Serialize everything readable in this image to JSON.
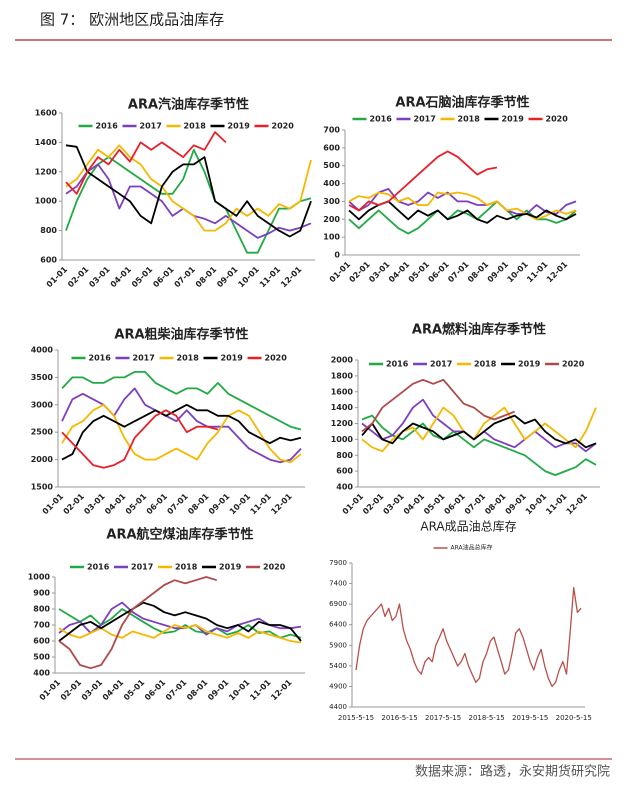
{
  "header": {
    "title": "图 7：  欧洲地区成品油库存"
  },
  "footer": {
    "source": "数据来源：路透，永安期货研究院"
  },
  "chart_data": [
    {
      "type": "line",
      "title": "ARA汽油库存季节性",
      "categories": [
        "01-01",
        null,
        "02-01",
        null,
        "03-01",
        null,
        "04-01",
        null,
        "05-01",
        null,
        "06-01",
        null,
        "07-01",
        null,
        "08-01",
        null,
        "09-01",
        null,
        "10-01",
        null,
        "11-01",
        null,
        "12-01",
        null
      ],
      "ylim": [
        600,
        1600
      ],
      "yticks": [
        600,
        800,
        1000,
        1200,
        1400,
        1600
      ],
      "series": [
        {
          "name": "2016",
          "color": "#22aa44",
          "values": [
            800,
            1000,
            1150,
            1250,
            1300,
            1250,
            1200,
            1150,
            1100,
            1050,
            1050,
            1150,
            1350,
            1200,
            1000,
            950,
            800,
            650,
            650,
            800,
            950,
            950,
            1000,
            1020
          ]
        },
        {
          "name": "2017",
          "color": "#7b3fbf",
          "values": [
            1050,
            1100,
            1200,
            1250,
            1150,
            950,
            1100,
            1100,
            1050,
            1000,
            900,
            950,
            900,
            880,
            850,
            900,
            850,
            800,
            750,
            780,
            820,
            800,
            820,
            850
          ]
        },
        {
          "name": "2018",
          "color": "#f5b800",
          "values": [
            1100,
            1150,
            1250,
            1350,
            1300,
            1380,
            1300,
            1250,
            1150,
            1100,
            1000,
            950,
            900,
            800,
            800,
            850,
            950,
            900,
            950,
            900,
            980,
            950,
            1000,
            1280
          ]
        },
        {
          "name": "2019",
          "color": "#000000",
          "values": [
            1380,
            1370,
            1200,
            1150,
            1100,
            1050,
            1000,
            900,
            850,
            1100,
            1200,
            1250,
            1250,
            1300,
            1000,
            950,
            900,
            1000,
            900,
            850,
            800,
            760,
            800,
            1000
          ]
        },
        {
          "name": "2020",
          "color": "#e8202a",
          "values": [
            1130,
            1050,
            1200,
            1300,
            1250,
            1350,
            1270,
            1400,
            1350,
            1400,
            1350,
            1300,
            1380,
            1350,
            1470,
            1400,
            null,
            null,
            null,
            null,
            null,
            null,
            null,
            null
          ]
        }
      ]
    },
    {
      "type": "line",
      "title": "ARA石脑油库存季节性",
      "categories": [
        "01-01",
        null,
        "02-01",
        null,
        "03-01",
        null,
        "04-01",
        null,
        "05-01",
        null,
        "06-01",
        null,
        "07-01",
        null,
        "08-01",
        null,
        "09-01",
        null,
        "10-01",
        null,
        "11-01",
        null,
        "12-01",
        null
      ],
      "ylim": [
        0,
        700
      ],
      "yticks": [
        0,
        100,
        200,
        300,
        400,
        500,
        600,
        700
      ],
      "series": [
        {
          "name": "2016",
          "color": "#22aa44",
          "values": [
            200,
            150,
            200,
            250,
            200,
            150,
            120,
            150,
            200,
            250,
            200,
            250,
            230,
            200,
            250,
            300,
            250,
            200,
            250,
            200,
            200,
            180,
            200,
            250
          ]
        },
        {
          "name": "2017",
          "color": "#7b3fbf",
          "values": [
            300,
            250,
            280,
            350,
            370,
            300,
            280,
            300,
            350,
            320,
            350,
            300,
            300,
            280,
            280,
            300,
            250,
            230,
            230,
            280,
            240,
            230,
            280,
            300
          ]
        },
        {
          "name": "2018",
          "color": "#f5b800",
          "values": [
            300,
            330,
            320,
            350,
            340,
            300,
            320,
            280,
            280,
            350,
            340,
            350,
            340,
            320,
            280,
            300,
            250,
            260,
            230,
            200,
            220,
            250,
            230,
            250
          ]
        },
        {
          "name": "2019",
          "color": "#000000",
          "values": [
            250,
            200,
            250,
            280,
            300,
            250,
            200,
            250,
            220,
            250,
            200,
            220,
            250,
            200,
            180,
            220,
            200,
            220,
            230,
            210,
            250,
            220,
            200,
            230
          ]
        },
        {
          "name": "2020",
          "color": "#e8202a",
          "values": [
            280,
            250,
            300,
            280,
            300,
            350,
            400,
            450,
            500,
            550,
            580,
            550,
            500,
            450,
            480,
            490,
            null,
            null,
            null,
            null,
            null,
            null,
            null,
            null
          ]
        }
      ]
    },
    {
      "type": "line",
      "title": "ARA粗柴油库存季节性",
      "categories": [
        "01-01",
        null,
        "02-01",
        null,
        "03-01",
        null,
        "04-01",
        null,
        "05-01",
        null,
        "06-01",
        null,
        "07-01",
        null,
        "08-01",
        null,
        "09-01",
        null,
        "10-01",
        null,
        "11-01",
        null,
        "12-01",
        null
      ],
      "ylim": [
        1500,
        4000
      ],
      "yticks": [
        1500,
        2000,
        2500,
        3000,
        3500,
        4000
      ],
      "series": [
        {
          "name": "2016",
          "color": "#22aa44",
          "values": [
            3300,
            3500,
            3500,
            3400,
            3400,
            3500,
            3500,
            3600,
            3600,
            3400,
            3300,
            3200,
            3300,
            3300,
            3200,
            3400,
            3200,
            3100,
            3000,
            2900,
            2800,
            2700,
            2600,
            2550
          ]
        },
        {
          "name": "2017",
          "color": "#7b3fbf",
          "values": [
            2700,
            3100,
            3200,
            3100,
            3000,
            2800,
            3100,
            3300,
            3000,
            2900,
            2800,
            2700,
            2900,
            2700,
            2600,
            2600,
            2600,
            2400,
            2200,
            2100,
            2000,
            1950,
            2000,
            2200
          ]
        },
        {
          "name": "2018",
          "color": "#f5b800",
          "values": [
            2300,
            2600,
            2700,
            2900,
            3000,
            2800,
            2400,
            2100,
            2000,
            2000,
            2100,
            2200,
            2100,
            2000,
            2300,
            2500,
            2800,
            2900,
            2800,
            2500,
            2200,
            2000,
            1950,
            2100
          ]
        },
        {
          "name": "2019",
          "color": "#000000",
          "values": [
            2000,
            2100,
            2500,
            2700,
            2800,
            2700,
            2600,
            2700,
            2800,
            2900,
            2800,
            2900,
            3000,
            2900,
            2900,
            2800,
            2800,
            2700,
            2500,
            2400,
            2300,
            2400,
            2350,
            2400
          ]
        },
        {
          "name": "2020",
          "color": "#e8202a",
          "values": [
            2500,
            2300,
            2100,
            1900,
            1850,
            1900,
            2000,
            2400,
            2600,
            2800,
            2900,
            2800,
            2500,
            2600,
            2600,
            2550,
            null,
            null,
            null,
            null,
            null,
            null,
            null,
            null
          ]
        }
      ]
    },
    {
      "type": "line",
      "title": "ARA燃料油库存季节性",
      "categories": [
        "01-01",
        null,
        "02-01",
        null,
        "03-01",
        null,
        "04-01",
        null,
        "05-01",
        null,
        "06-01",
        null,
        "07-01",
        null,
        "08-01",
        null,
        "09-01",
        null,
        "10-01",
        null,
        "11-01",
        null,
        "12-01",
        null
      ],
      "ylim": [
        400,
        2000
      ],
      "yticks": [
        400,
        600,
        800,
        1000,
        1200,
        1400,
        1600,
        1800,
        2000
      ],
      "series": [
        {
          "name": "2016",
          "color": "#22aa44",
          "values": [
            1250,
            1300,
            1150,
            1050,
            1000,
            1100,
            1200,
            1050,
            1000,
            1100,
            1000,
            900,
            1000,
            950,
            900,
            850,
            800,
            700,
            600,
            550,
            600,
            650,
            750,
            680
          ]
        },
        {
          "name": "2017",
          "color": "#7b3fbf",
          "values": [
            1200,
            1100,
            1000,
            1050,
            1200,
            1400,
            1500,
            1300,
            1200,
            1100,
            1100,
            1000,
            1100,
            1000,
            950,
            900,
            1000,
            1100,
            1000,
            900,
            950,
            950,
            850,
            950
          ]
        },
        {
          "name": "2018",
          "color": "#f5b800",
          "values": [
            1000,
            900,
            850,
            1000,
            1100,
            1150,
            1000,
            1200,
            1400,
            1300,
            1100,
            1000,
            1200,
            1300,
            1400,
            1200,
            1000,
            1100,
            1200,
            1100,
            1000,
            900,
            1100,
            1400
          ]
        },
        {
          "name": "2019",
          "color": "#000000",
          "values": [
            1050,
            1200,
            1000,
            950,
            1100,
            1200,
            1150,
            1100,
            1000,
            1050,
            1100,
            1000,
            1100,
            1200,
            1250,
            1300,
            1200,
            1250,
            1100,
            1000,
            950,
            1000,
            900,
            950
          ]
        },
        {
          "name": "2020",
          "color": "#b04a4a",
          "values": [
            1100,
            1200,
            1400,
            1500,
            1600,
            1700,
            1750,
            1700,
            1750,
            1600,
            1450,
            1400,
            1300,
            1250,
            1300,
            1350,
            null,
            null,
            null,
            null,
            null,
            null,
            null,
            null
          ]
        }
      ]
    },
    {
      "type": "line",
      "title": "ARA航空煤油库存季节性",
      "categories": [
        "01-01",
        null,
        "02-01",
        null,
        "03-01",
        null,
        "04-01",
        null,
        "05-01",
        null,
        "06-01",
        null,
        "07-01",
        null,
        "08-01",
        null,
        "09-01",
        null,
        "10-01",
        null,
        "11-01",
        null,
        "12-01",
        null
      ],
      "ylim": [
        400,
        1000
      ],
      "yticks": [
        400,
        500,
        600,
        700,
        800,
        900,
        1000
      ],
      "series": [
        {
          "name": "2016",
          "color": "#22aa44",
          "values": [
            800,
            760,
            720,
            760,
            700,
            740,
            800,
            760,
            720,
            680,
            650,
            660,
            700,
            660,
            650,
            680,
            640,
            660,
            700,
            650,
            660,
            620,
            640,
            620
          ]
        },
        {
          "name": "2017",
          "color": "#7b3fbf",
          "values": [
            650,
            700,
            720,
            650,
            700,
            800,
            840,
            780,
            740,
            720,
            700,
            680,
            680,
            700,
            640,
            680,
            660,
            700,
            720,
            740,
            700,
            680,
            680,
            690
          ]
        },
        {
          "name": "2018",
          "color": "#f5b800",
          "values": [
            680,
            640,
            620,
            650,
            680,
            640,
            620,
            660,
            640,
            620,
            660,
            700,
            680,
            700,
            660,
            640,
            620,
            650,
            620,
            660,
            640,
            620,
            600,
            590
          ]
        },
        {
          "name": "2019",
          "color": "#000000",
          "values": [
            600,
            650,
            700,
            720,
            680,
            720,
            760,
            800,
            840,
            820,
            780,
            760,
            780,
            760,
            740,
            700,
            680,
            700,
            660,
            720,
            700,
            700,
            680,
            600
          ]
        },
        {
          "name": "2020",
          "color": "#b04a4a",
          "values": [
            600,
            550,
            450,
            430,
            450,
            550,
            700,
            800,
            850,
            900,
            950,
            980,
            960,
            980,
            1000,
            980,
            null,
            null,
            null,
            null,
            null,
            null,
            null,
            null
          ]
        }
      ]
    },
    {
      "type": "line",
      "title": "ARA成品油总库存",
      "categories": [
        "2015-5-15",
        null,
        null,
        null,
        null,
        null,
        null,
        null,
        null,
        null,
        null,
        null,
        "2016-5-15",
        null,
        null,
        null,
        null,
        null,
        null,
        null,
        null,
        null,
        null,
        null,
        "2017-5-15",
        null,
        null,
        null,
        null,
        null,
        null,
        null,
        null,
        null,
        null,
        null,
        "2018-5-15",
        null,
        null,
        null,
        null,
        null,
        null,
        null,
        null,
        null,
        null,
        null,
        "2019-5-15",
        null,
        null,
        null,
        null,
        null,
        null,
        null,
        null,
        null,
        null,
        null,
        "2020-5-15",
        null,
        null
      ],
      "ylim": [
        4400,
        7900
      ],
      "yticks": [
        4400,
        4900,
        5400,
        5900,
        6400,
        6900,
        7400,
        7900
      ],
      "series": [
        {
          "name": "ARA油品总库存",
          "color": "#b8504a",
          "values": [
            5300,
            5900,
            6300,
            6500,
            6600,
            6700,
            6800,
            6900,
            6600,
            6800,
            6500,
            6600,
            6900,
            6300,
            6000,
            5800,
            5500,
            5300,
            5200,
            5500,
            5600,
            5500,
            5900,
            6100,
            6300,
            6000,
            5800,
            5600,
            5400,
            5500,
            5700,
            5400,
            5200,
            5000,
            5100,
            5500,
            5700,
            6000,
            6100,
            5800,
            5500,
            5200,
            5300,
            5700,
            6200,
            6300,
            6100,
            5800,
            5500,
            5300,
            5600,
            5800,
            5400,
            5100,
            4900,
            5000,
            5300,
            5500,
            5200,
            6200,
            7300,
            6700,
            6800
          ]
        }
      ]
    }
  ]
}
